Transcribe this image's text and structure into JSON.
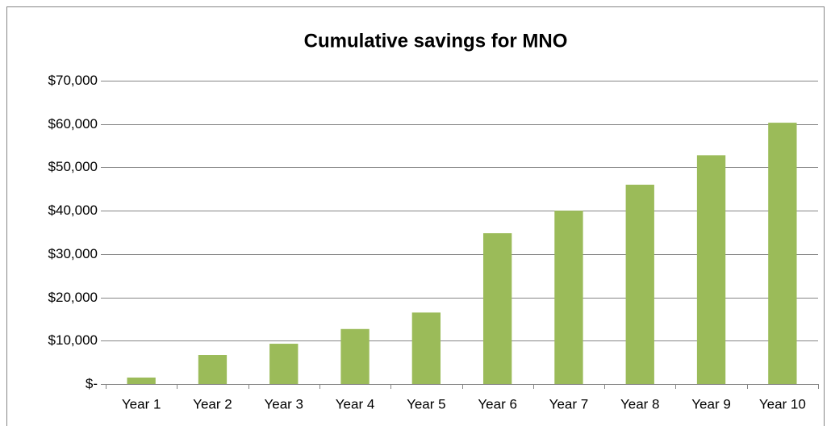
{
  "chart_data": {
    "type": "bar",
    "title": "Cumulative savings for MNO",
    "categories": [
      "Year 1",
      "Year 2",
      "Year 3",
      "Year 4",
      "Year 5",
      "Year 6",
      "Year 7",
      "Year 8",
      "Year 9",
      "Year 10"
    ],
    "values": [
      1500,
      6700,
      9300,
      12700,
      16500,
      34800,
      40000,
      46000,
      52800,
      60300
    ],
    "color": "#9bbb59",
    "ylim": [
      0,
      70000
    ],
    "yticks": [
      {
        "value": 0,
        "label": "$-"
      },
      {
        "value": 10000,
        "label": "$10,000"
      },
      {
        "value": 20000,
        "label": "$20,000"
      },
      {
        "value": 30000,
        "label": "$30,000"
      },
      {
        "value": 40000,
        "label": "$40,000"
      },
      {
        "value": 50000,
        "label": "$50,000"
      },
      {
        "value": 60000,
        "label": "$60,000"
      },
      {
        "value": 70000,
        "label": "$70,000"
      }
    ],
    "grid": true
  }
}
